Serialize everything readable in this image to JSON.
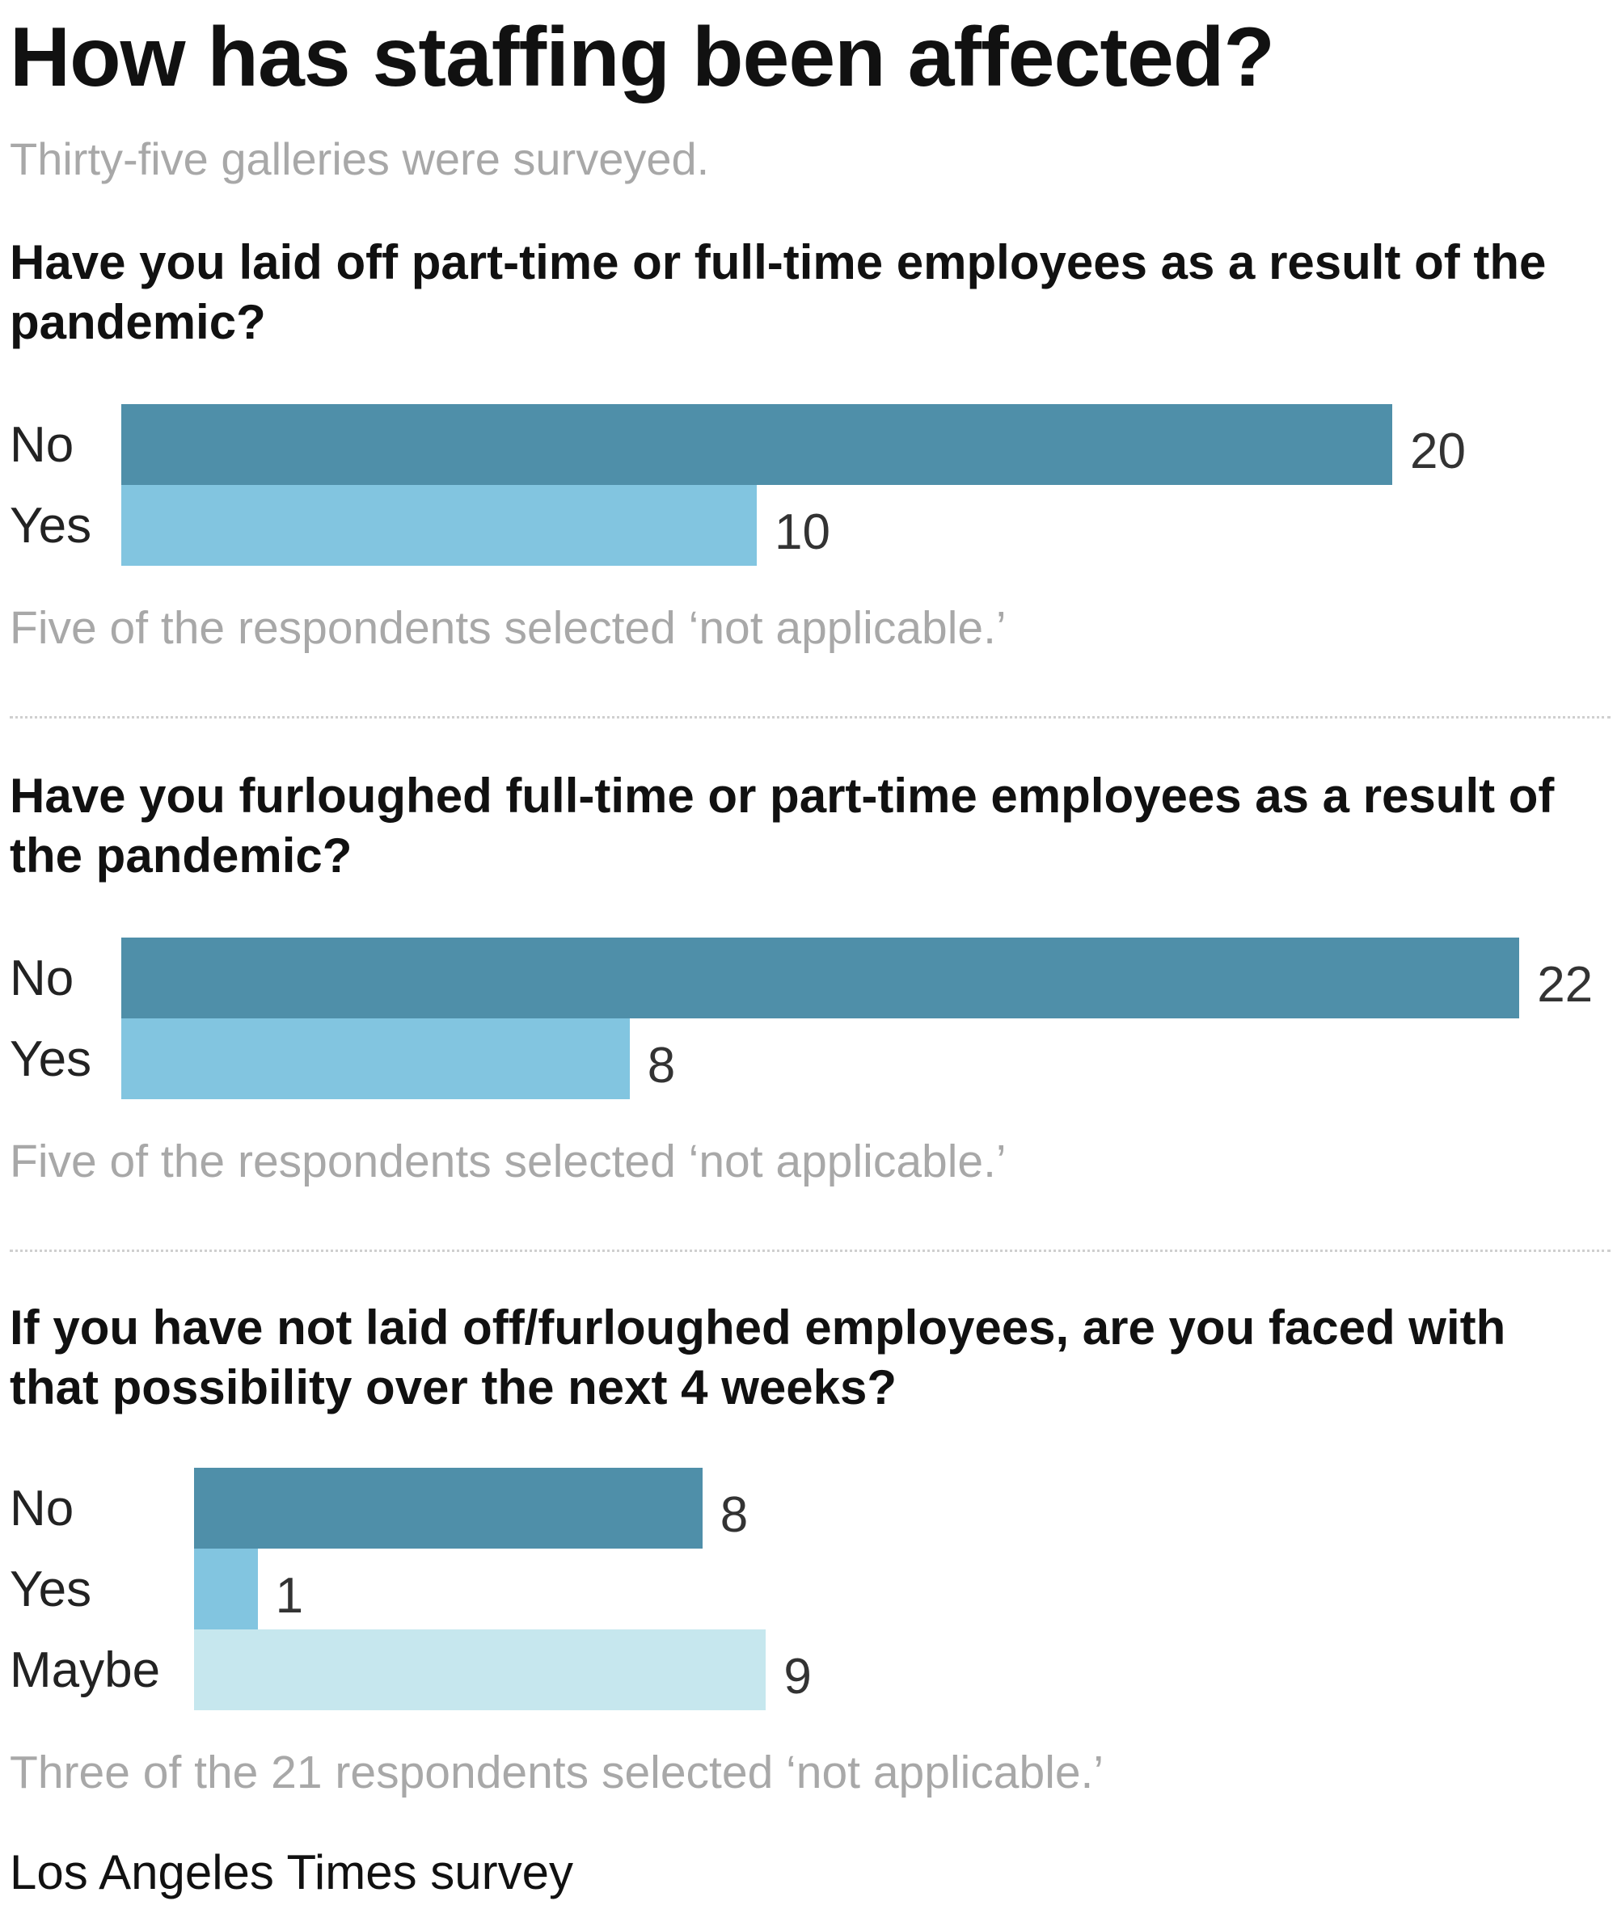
{
  "title": "How has staffing been affected?",
  "subtitle": "Thirty-five galleries were surveyed.",
  "source": "Los Angeles Times survey",
  "colors": {
    "no": "#4f8fa9",
    "yes": "#82c5e0",
    "maybe": "#c6e7ee"
  },
  "chart_data": [
    {
      "type": "bar",
      "orientation": "horizontal",
      "title": "Have you laid off part-time or full-time employees as a result of the pandemic?",
      "categories": [
        "No",
        "Yes"
      ],
      "values": [
        20,
        10
      ],
      "note": "Five of the respondents selected ‘not applicable.’"
    },
    {
      "type": "bar",
      "orientation": "horizontal",
      "title": "Have you furloughed full-time or part-time employees as a result of the pandemic?",
      "categories": [
        "No",
        "Yes"
      ],
      "values": [
        22,
        8
      ],
      "note": "Five of the respondents selected ‘not applicable.’"
    },
    {
      "type": "bar",
      "orientation": "horizontal",
      "title": "If you have not laid off/furloughed employees, are you faced with that possibility over the next 4 weeks?",
      "categories": [
        "No",
        "Yes",
        "Maybe"
      ],
      "values": [
        8,
        1,
        9
      ],
      "note": "Three of the 21 respondents selected ‘not applicable.’"
    }
  ]
}
